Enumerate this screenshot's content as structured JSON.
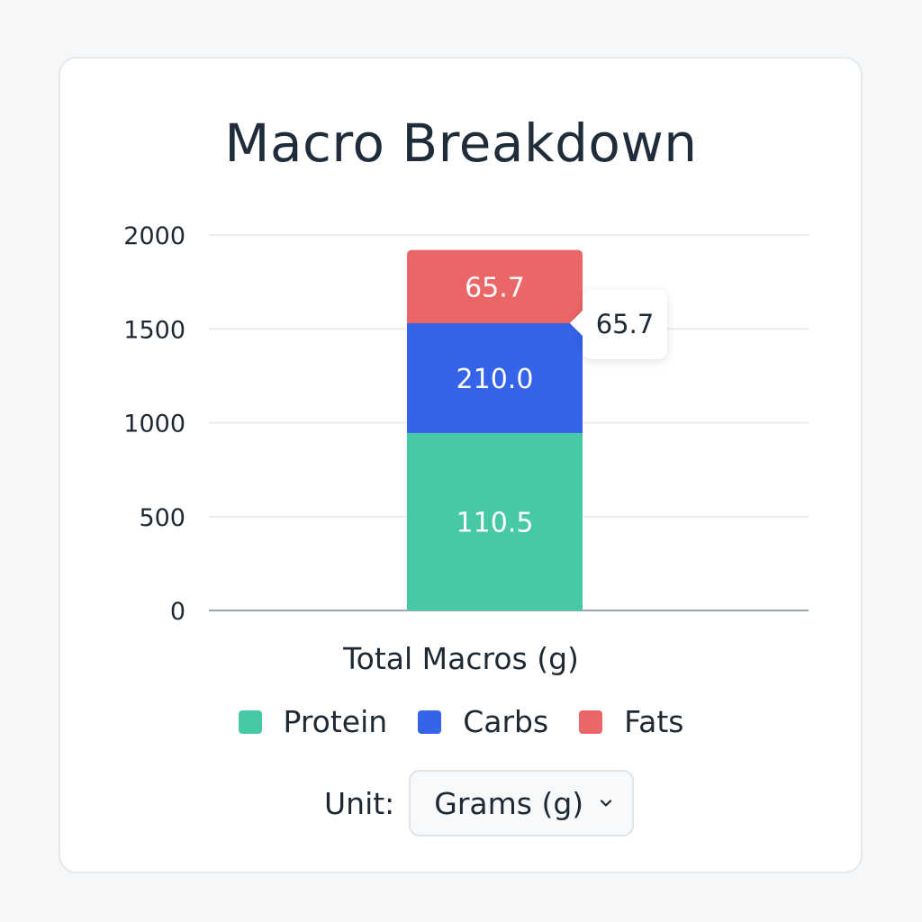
{
  "title": "Macro Breakdown",
  "chart_data": {
    "type": "bar",
    "stacked": true,
    "categories": [
      "Total Macros (g)"
    ],
    "xlabel": "Total Macros (g)",
    "ylabel": "",
    "ylim": [
      0,
      2000
    ],
    "yticks": [
      0,
      500,
      1000,
      1500,
      2000
    ],
    "grid": true,
    "legend_position": "bottom",
    "series": [
      {
        "name": "Protein",
        "color": "#48c9a6",
        "label": "110.5",
        "extent": [
          0,
          945
        ]
      },
      {
        "name": "Carbs",
        "color": "#3563ea",
        "label": "210.0",
        "extent": [
          945,
          1530
        ]
      },
      {
        "name": "Fats",
        "color": "#eb6767",
        "label": "65.7",
        "extent": [
          1530,
          1920
        ]
      }
    ],
    "tooltip": {
      "series": "Fats",
      "value": "65.7"
    }
  },
  "legend": [
    {
      "label": "Protein",
      "color": "#48c9a6"
    },
    {
      "label": "Carbs",
      "color": "#3563ea"
    },
    {
      "label": "Fats",
      "color": "#eb6767"
    }
  ],
  "unit": {
    "label": "Unit:",
    "selected": "Grams (g)"
  }
}
